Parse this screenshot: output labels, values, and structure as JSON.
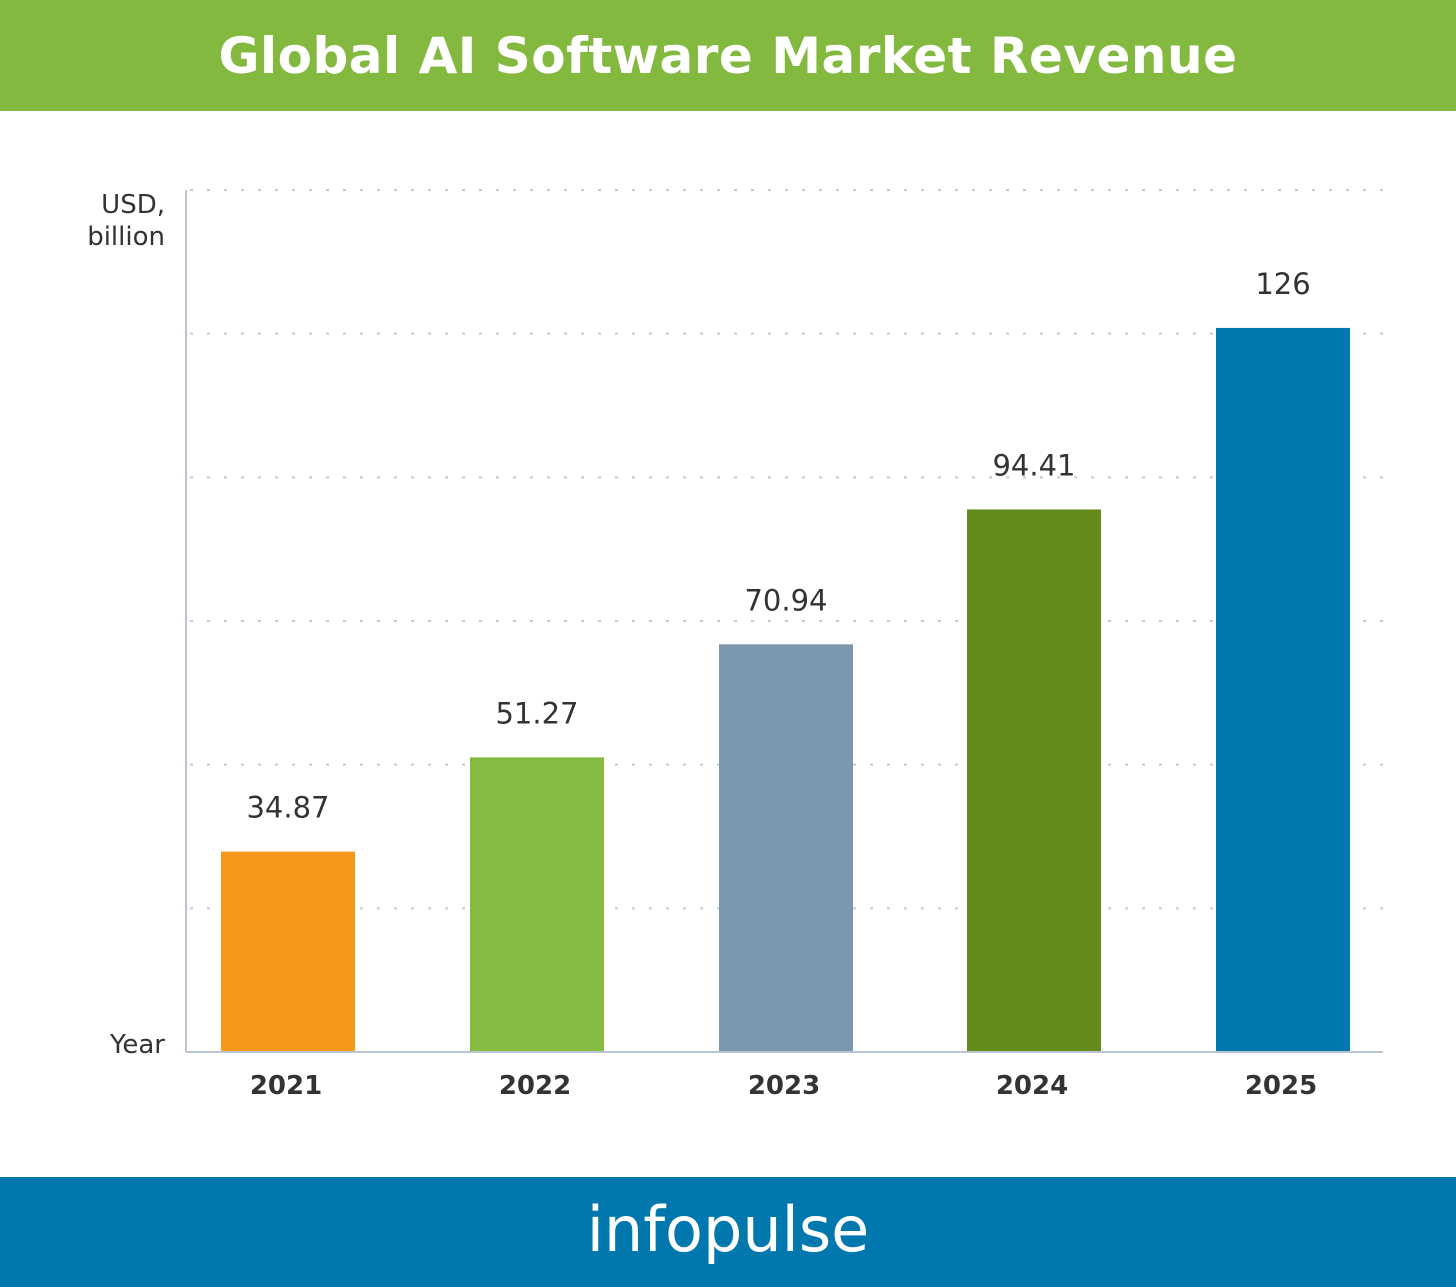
{
  "header": {
    "title": "Global AI Software Market Revenue"
  },
  "footer": {
    "logo_text": "infopulse"
  },
  "colors": {
    "header": "#84b940",
    "footer": "#0077ad"
  },
  "chart_data": {
    "type": "bar",
    "title": "Global AI Software Market Revenue",
    "ylabel_lines": [
      "USD,",
      "billion"
    ],
    "xlabel": "Year",
    "categories": [
      "2021",
      "2022",
      "2023",
      "2024",
      "2025"
    ],
    "values": [
      34.87,
      51.27,
      70.94,
      94.41,
      126
    ],
    "value_labels": [
      "34.87",
      "51.27",
      "70.94",
      "94.41",
      "126"
    ],
    "bar_colors": [
      "#f7981d",
      "#84bc41",
      "#7b97ad",
      "#648b1b",
      "#0077ad"
    ],
    "ylim": [
      0,
      150
    ],
    "grid_step": 25,
    "grid": true,
    "legend": "none"
  }
}
